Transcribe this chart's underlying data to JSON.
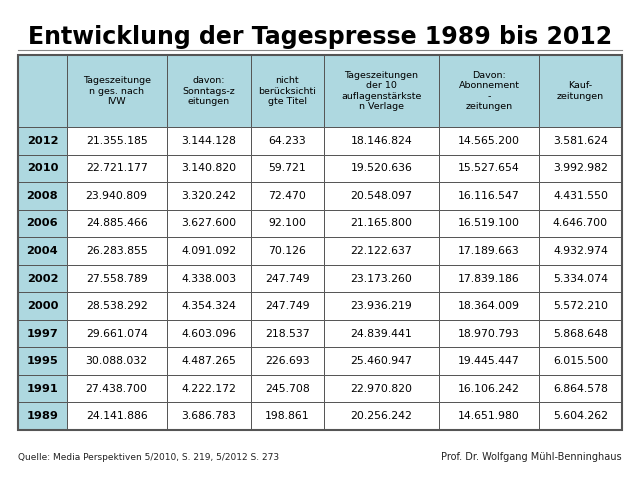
{
  "title": "Entwicklung der Tagespresse 1989 bis 2012",
  "source": "Quelle: Media Perspektiven 5/2010, S. 219, 5/2012 S. 273",
  "author": "Prof. Dr. Wolfgang Mühl-Benninghaus",
  "header": [
    "Tageszeitunge\nn ges. nach\nIVW",
    "davon:\nSonntags-z\neitungen",
    "nicht\nberücksichti\ngte Titel",
    "Tageszeitungen\nder 10\nauflagenstärkste\nn Verlage",
    "Davon:\nAbonnement\n-\nzeitungen",
    "Kauf-\nzeitungen"
  ],
  "years": [
    "2012",
    "2010",
    "2008",
    "2006",
    "2004",
    "2002",
    "2000",
    "1997",
    "1995",
    "1991",
    "1989"
  ],
  "data": [
    [
      "21.355.185",
      "3.144.128",
      "64.233",
      "18.146.824",
      "14.565.200",
      "3.581.624"
    ],
    [
      "22.721.177",
      "3.140.820",
      "59.721",
      "19.520.636",
      "15.527.654",
      "3.992.982"
    ],
    [
      "23.940.809",
      "3.320.242",
      "72.470",
      "20.548.097",
      "16.116.547",
      "4.431.550"
    ],
    [
      "24.885.466",
      "3.627.600",
      "92.100",
      "21.165.800",
      "16.519.100",
      "4.646.700"
    ],
    [
      "26.283.855",
      "4.091.092",
      "70.126",
      "22.122.637",
      "17.189.663",
      "4.932.974"
    ],
    [
      "27.558.789",
      "4.338.003",
      "247.749",
      "23.173.260",
      "17.839.186",
      "5.334.074"
    ],
    [
      "28.538.292",
      "4.354.324",
      "247.749",
      "23.936.219",
      "18.364.009",
      "5.572.210"
    ],
    [
      "29.661.074",
      "4.603.096",
      "218.537",
      "24.839.441",
      "18.970.793",
      "5.868.648"
    ],
    [
      "30.088.032",
      "4.487.265",
      "226.693",
      "25.460.947",
      "19.445.447",
      "6.015.500"
    ],
    [
      "27.438.700",
      "4.222.172",
      "245.708",
      "22.970.820",
      "16.106.242",
      "6.864.578"
    ],
    [
      "24.141.886",
      "3.686.783",
      "198.861",
      "20.256.242",
      "14.651.980",
      "5.604.262"
    ]
  ],
  "header_bg": "#aed8e0",
  "border_color": "#555555",
  "title_fontsize": 17,
  "header_fontsize": 6.8,
  "data_fontsize": 7.8,
  "year_fontsize": 8.2,
  "source_fontsize": 6.5,
  "author_fontsize": 7.0
}
